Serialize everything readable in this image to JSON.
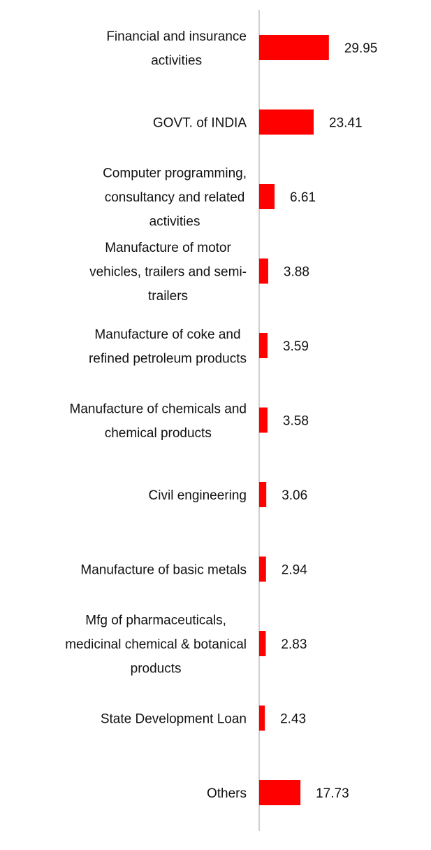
{
  "chart_data": {
    "type": "bar",
    "orientation": "horizontal",
    "categories": [
      "Financial and insurance activities",
      "GOVT. of INDIA",
      "Computer programming, consultancy and related activities",
      "Manufacture of motor vehicles, trailers and semi-trailers",
      "Manufacture of coke and refined petroleum products",
      "Manufacture of chemicals and chemical products",
      "Civil engineering",
      "Manufacture of basic metals",
      "Mfg of pharmaceuticals, medicinal chemical & botanical products",
      "State Development Loan",
      "Others"
    ],
    "category_lines": [
      [
        "Financial and insurance",
        "activities"
      ],
      [
        "GOVT. of INDIA"
      ],
      [
        "Computer programming,",
        "consultancy and related",
        "activities"
      ],
      [
        "Manufacture of motor",
        "vehicles, trailers and semi-",
        "trailers"
      ],
      [
        "Manufacture of coke and",
        "refined petroleum products"
      ],
      [
        "Manufacture of chemicals and",
        "chemical products"
      ],
      [
        "Civil engineering"
      ],
      [
        "Manufacture of basic metals"
      ],
      [
        "Mfg of pharmaceuticals,",
        "medicinal chemical & botanical",
        "products"
      ],
      [
        "State Development Loan"
      ],
      [
        "Others"
      ]
    ],
    "values": [
      29.95,
      23.41,
      6.61,
      3.88,
      3.59,
      3.58,
      3.06,
      2.94,
      2.83,
      2.43,
      17.73
    ],
    "value_labels": [
      "29.95",
      "23.41",
      "6.61",
      "3.88",
      "3.59",
      "3.58",
      "3.06",
      "2.94",
      "2.83",
      "2.43",
      "17.73"
    ],
    "title": "",
    "xlabel": "",
    "ylabel": "",
    "xlim": [
      0,
      30
    ],
    "grid": false,
    "legend": "none",
    "bar_color": "#ff0000",
    "axis_color": "#d0d0d0"
  }
}
